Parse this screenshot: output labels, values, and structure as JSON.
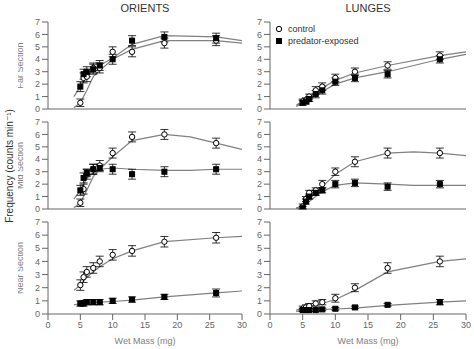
{
  "ylabel": "Frequency (counts min⁻¹)",
  "chart_data": [
    {
      "type": "scatter",
      "title": "ORIENTS",
      "ylabel": "Far Section",
      "xlim": [
        0,
        30
      ],
      "xticks": [
        0,
        5,
        10,
        15,
        20,
        25,
        30
      ],
      "ylim": [
        0,
        7
      ],
      "yticks": [
        0,
        1,
        2,
        3,
        4,
        5,
        6,
        7
      ],
      "tick_labels": "y",
      "series": [
        {
          "type": "line",
          "color": "#808080",
          "x": [
            4,
            5,
            6,
            7,
            8,
            10,
            13,
            18,
            26,
            30
          ],
          "values": [
            0.1,
            0.5,
            1.5,
            2.6,
            3.1,
            4.0,
            4.8,
            5.5,
            5.5,
            5.3
          ]
        },
        {
          "type": "line",
          "color": "#808080",
          "x": [
            4,
            5,
            6,
            7,
            8,
            10,
            13,
            18,
            26,
            30
          ],
          "values": [
            1.0,
            1.8,
            2.6,
            3.1,
            3.5,
            4.1,
            5.2,
            5.9,
            5.8,
            5.5
          ]
        },
        {
          "name": "control",
          "type": "scatter",
          "marker": "circle",
          "color": "#000000",
          "x": [
            5,
            5.5,
            6,
            7,
            8,
            10,
            13,
            18,
            26
          ],
          "values": [
            0.5,
            2.5,
            2.6,
            3.3,
            3.3,
            4.6,
            4.6,
            5.3,
            5.5
          ],
          "error": [
            0.3,
            0.4,
            0.4,
            0.4,
            0.4,
            0.4,
            0.4,
            0.4,
            0.4
          ]
        },
        {
          "name": "predator-exposed",
          "type": "scatter",
          "marker": "square",
          "color": "#000000",
          "x": [
            5,
            5.5,
            6,
            7,
            8,
            10,
            13,
            18,
            26
          ],
          "values": [
            1.8,
            2.8,
            3.0,
            3.2,
            3.5,
            4.0,
            5.5,
            5.8,
            5.7
          ],
          "error": [
            0.4,
            0.4,
            0.4,
            0.4,
            0.4,
            0.4,
            0.4,
            0.4,
            0.4
          ]
        }
      ]
    },
    {
      "type": "scatter",
      "title": "LUNGES",
      "legend": "upper left",
      "xlim": [
        0,
        30
      ],
      "xticks": [
        0,
        5,
        10,
        15,
        20,
        25,
        30
      ],
      "ylim": [
        0,
        7
      ],
      "yticks": [
        0,
        1,
        2,
        3,
        4,
        5,
        6,
        7
      ],
      "tick_labels": "y",
      "series": [
        {
          "type": "line",
          "color": "#808080",
          "x": [
            4,
            5,
            6,
            7,
            8,
            10,
            13,
            18,
            26,
            30
          ],
          "values": [
            0.3,
            0.6,
            0.9,
            1.3,
            1.7,
            2.3,
            2.9,
            3.5,
            4.3,
            4.6
          ]
        },
        {
          "type": "line",
          "color": "#808080",
          "x": [
            4,
            5,
            6,
            7,
            8,
            10,
            13,
            18,
            26,
            30
          ],
          "values": [
            0.2,
            0.5,
            0.7,
            1.1,
            1.4,
            2.0,
            2.5,
            3.0,
            4.0,
            4.4
          ]
        },
        {
          "name": "control",
          "type": "scatter",
          "marker": "circle",
          "color": "#000000",
          "x": [
            5,
            5.5,
            6,
            7,
            8,
            10,
            13,
            18,
            26
          ],
          "values": [
            0.6,
            0.7,
            1.0,
            1.5,
            1.8,
            2.5,
            3.0,
            3.5,
            4.3
          ],
          "error": [
            0.2,
            0.2,
            0.2,
            0.3,
            0.3,
            0.3,
            0.3,
            0.3,
            0.3
          ]
        },
        {
          "name": "predator-exposed",
          "type": "scatter",
          "marker": "square",
          "color": "#000000",
          "x": [
            5,
            5.5,
            6,
            7,
            8,
            10,
            13,
            18,
            26
          ],
          "values": [
            0.5,
            0.6,
            0.8,
            1.2,
            1.5,
            2.2,
            2.5,
            2.8,
            4.0
          ],
          "error": [
            0.2,
            0.2,
            0.2,
            0.3,
            0.3,
            0.3,
            0.3,
            0.3,
            0.3
          ]
        }
      ]
    },
    {
      "type": "scatter",
      "ylabel": "Mid Section",
      "xlim": [
        0,
        30
      ],
      "xticks": [
        0,
        5,
        10,
        15,
        20,
        25,
        30
      ],
      "ylim": [
        0,
        7
      ],
      "yticks": [
        0,
        1,
        2,
        3,
        4,
        5,
        6,
        7
      ],
      "tick_labels": "y",
      "series": [
        {
          "type": "line",
          "color": "#808080",
          "x": [
            4,
            5,
            6,
            7,
            8,
            10,
            13,
            18,
            22,
            26,
            30
          ],
          "values": [
            0.1,
            0.5,
            1.5,
            2.6,
            3.2,
            4.2,
            5.5,
            6.0,
            5.8,
            5.3,
            4.8
          ]
        },
        {
          "type": "line",
          "color": "#808080",
          "x": [
            4,
            5,
            6,
            7,
            8,
            10,
            13,
            18,
            22,
            26,
            30
          ],
          "values": [
            0.8,
            1.5,
            2.5,
            2.9,
            3.2,
            3.3,
            3.2,
            3.1,
            3.1,
            3.2,
            3.2
          ]
        },
        {
          "name": "control",
          "type": "scatter",
          "marker": "circle",
          "color": "#000000",
          "x": [
            5,
            5.5,
            6,
            7,
            8,
            10,
            13,
            18,
            26
          ],
          "values": [
            0.5,
            1.6,
            2.8,
            3.2,
            3.5,
            4.5,
            5.8,
            6.0,
            5.3
          ],
          "error": [
            0.3,
            0.4,
            0.4,
            0.4,
            0.4,
            0.4,
            0.4,
            0.4,
            0.4
          ]
        },
        {
          "name": "predator-exposed",
          "type": "scatter",
          "marker": "square",
          "color": "#000000",
          "x": [
            5,
            5.5,
            6,
            7,
            8,
            10,
            13,
            18,
            26
          ],
          "values": [
            1.5,
            2.5,
            2.9,
            3.2,
            3.3,
            3.2,
            2.8,
            3.0,
            3.2
          ],
          "error": [
            0.4,
            0.4,
            0.3,
            0.4,
            0.3,
            0.4,
            0.4,
            0.4,
            0.4
          ]
        }
      ]
    },
    {
      "type": "scatter",
      "xlim": [
        0,
        30
      ],
      "xticks": [
        0,
        5,
        10,
        15,
        20,
        25,
        30
      ],
      "ylim": [
        0,
        7
      ],
      "yticks": [
        0,
        1,
        2,
        3,
        4,
        5,
        6,
        7
      ],
      "tick_labels": "y",
      "series": [
        {
          "type": "line",
          "color": "#808080",
          "x": [
            4,
            5,
            6,
            7,
            8,
            10,
            13,
            18,
            22,
            26,
            30
          ],
          "values": [
            0.1,
            0.2,
            0.8,
            1.3,
            1.8,
            2.8,
            3.8,
            4.5,
            4.6,
            4.5,
            4.3
          ]
        },
        {
          "type": "line",
          "color": "#808080",
          "x": [
            4,
            5,
            6,
            7,
            8,
            10,
            13,
            18,
            22,
            26,
            30
          ],
          "values": [
            0.05,
            0.1,
            0.6,
            1.0,
            1.4,
            1.9,
            2.1,
            2.0,
            1.9,
            1.9,
            1.9
          ]
        },
        {
          "name": "control",
          "type": "scatter",
          "marker": "circle",
          "color": "#000000",
          "x": [
            5,
            5.5,
            6,
            7,
            8,
            10,
            13,
            18,
            26
          ],
          "values": [
            0.2,
            0.8,
            1.3,
            1.5,
            2.0,
            3.0,
            3.8,
            4.5,
            4.5
          ],
          "error": [
            0.2,
            0.2,
            0.2,
            0.2,
            0.3,
            0.3,
            0.4,
            0.4,
            0.4
          ]
        },
        {
          "name": "predator-exposed",
          "type": "scatter",
          "marker": "square",
          "color": "#000000",
          "x": [
            5,
            5.5,
            6,
            7,
            8,
            10,
            13,
            18,
            26
          ],
          "values": [
            0.1,
            0.6,
            1.0,
            1.3,
            1.5,
            2.0,
            2.1,
            1.8,
            2.0
          ],
          "error": [
            0.1,
            0.2,
            0.2,
            0.2,
            0.2,
            0.3,
            0.3,
            0.3,
            0.3
          ]
        }
      ]
    },
    {
      "type": "scatter",
      "ylabel": "Near Section",
      "xlabel": "Wet Mass (mg)",
      "xlim": [
        0,
        30
      ],
      "xticks": [
        0,
        5,
        10,
        15,
        20,
        25,
        30
      ],
      "ylim": [
        0,
        7
      ],
      "yticks": [
        0,
        1,
        2,
        3,
        4,
        5,
        6,
        7
      ],
      "series": [
        {
          "type": "line",
          "color": "#808080",
          "x": [
            4,
            5,
            6,
            7,
            8,
            10,
            13,
            18,
            26,
            30
          ],
          "values": [
            1.8,
            2.2,
            2.8,
            3.2,
            3.6,
            4.2,
            4.8,
            5.5,
            5.8,
            5.9
          ]
        },
        {
          "type": "line",
          "color": "#808080",
          "x": [
            4,
            5,
            6,
            7,
            8,
            10,
            13,
            18,
            26,
            30
          ],
          "values": [
            0.7,
            0.8,
            0.85,
            0.88,
            0.9,
            0.95,
            1.05,
            1.3,
            1.6,
            1.75
          ]
        },
        {
          "name": "control",
          "type": "scatter",
          "marker": "circle",
          "color": "#000000",
          "x": [
            5,
            5.5,
            6,
            7,
            8,
            10,
            13,
            18,
            26
          ],
          "values": [
            2.2,
            2.8,
            3.2,
            3.5,
            4.0,
            4.5,
            4.8,
            5.5,
            5.8
          ],
          "error": [
            0.4,
            0.4,
            0.4,
            0.4,
            0.4,
            0.4,
            0.4,
            0.4,
            0.4
          ]
        },
        {
          "name": "predator-exposed",
          "type": "scatter",
          "marker": "square",
          "color": "#000000",
          "x": [
            5,
            5.5,
            6,
            7,
            8,
            10,
            13,
            18,
            26
          ],
          "values": [
            0.8,
            0.8,
            0.9,
            0.9,
            0.9,
            1.0,
            1.1,
            1.3,
            1.6
          ],
          "error": [
            0.2,
            0.2,
            0.2,
            0.2,
            0.2,
            0.2,
            0.2,
            0.2,
            0.3
          ]
        }
      ]
    },
    {
      "type": "scatter",
      "xlabel": "Wet Mass (mg)",
      "xlim": [
        0,
        30
      ],
      "xticks": [
        0,
        5,
        10,
        15,
        20,
        25,
        30
      ],
      "ylim": [
        0,
        7
      ],
      "yticks": [
        0,
        1,
        2,
        3,
        4,
        5,
        6,
        7
      ],
      "series": [
        {
          "type": "line",
          "color": "#808080",
          "x": [
            4,
            5,
            6,
            7,
            8,
            10,
            13,
            18,
            26,
            30
          ],
          "values": [
            0.3,
            0.4,
            0.5,
            0.7,
            0.8,
            1.1,
            1.8,
            3.2,
            4.0,
            4.2
          ]
        },
        {
          "type": "line",
          "color": "#808080",
          "x": [
            4,
            5,
            6,
            7,
            8,
            10,
            13,
            18,
            26,
            30
          ],
          "values": [
            0.2,
            0.3,
            0.3,
            0.3,
            0.35,
            0.38,
            0.45,
            0.65,
            0.9,
            1.0
          ]
        },
        {
          "name": "control",
          "type": "scatter",
          "marker": "circle",
          "color": "#000000",
          "x": [
            5,
            5.5,
            6,
            7,
            8,
            10,
            13,
            18,
            26
          ],
          "values": [
            0.4,
            0.5,
            0.6,
            0.8,
            0.9,
            1.2,
            2.0,
            3.5,
            4.0
          ],
          "error": [
            0.2,
            0.2,
            0.2,
            0.2,
            0.2,
            0.3,
            0.3,
            0.4,
            0.4
          ]
        },
        {
          "name": "predator-exposed",
          "type": "scatter",
          "marker": "square",
          "color": "#000000",
          "x": [
            5,
            5.5,
            6,
            7,
            8,
            10,
            13,
            18,
            26
          ],
          "values": [
            0.3,
            0.3,
            0.3,
            0.3,
            0.35,
            0.4,
            0.5,
            0.7,
            0.9
          ],
          "error": [
            0.1,
            0.1,
            0.1,
            0.1,
            0.1,
            0.1,
            0.1,
            0.1,
            0.2
          ]
        }
      ]
    }
  ]
}
